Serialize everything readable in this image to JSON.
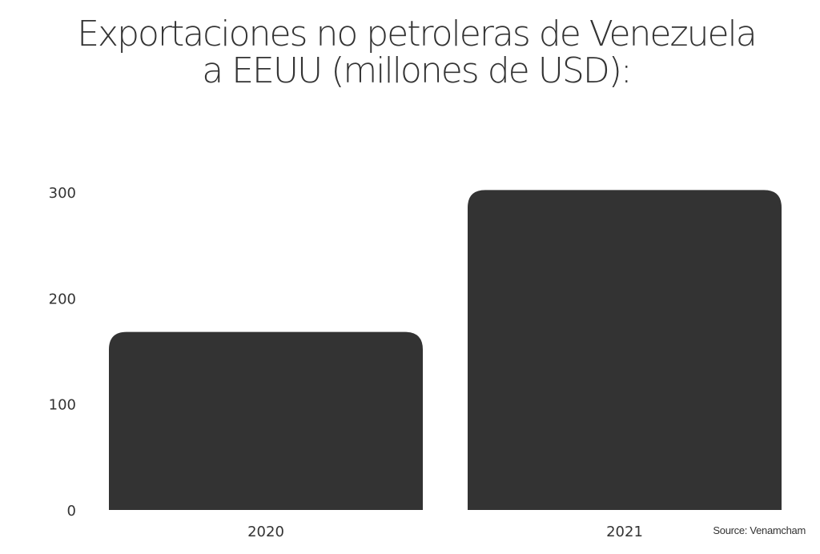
{
  "chart_data": {
    "type": "bar",
    "title_lines": [
      "Exportaciones no petroleras de Venezuela",
      "a EEUU (millones de USD):"
    ],
    "categories": [
      "2020",
      "2021"
    ],
    "values": [
      168,
      302
    ],
    "ylim": [
      0,
      300
    ],
    "yticks": [
      "0",
      "100",
      "200",
      "300"
    ],
    "xlabel": "",
    "ylabel": "",
    "grid": false,
    "legend": "none",
    "bar_color": "#333333"
  },
  "source": "Source: Venamcham"
}
